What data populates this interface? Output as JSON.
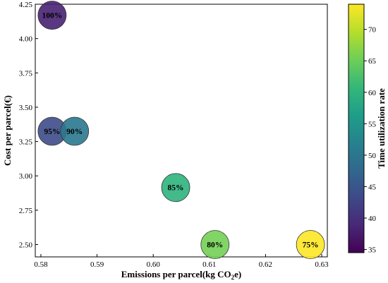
{
  "chart_data": {
    "type": "scatter",
    "title": "",
    "xlabel": "Emissions per parcel(kg CO",
    "xlabel_sub": "2",
    "xlabel_tail": "e)",
    "ylabel": "Cost per parcel(€)",
    "colorbar_label": "Time utilization rate",
    "xlim": [
      0.579,
      0.631
    ],
    "ylim": [
      2.41,
      4.25
    ],
    "color_range": [
      34.5,
      74
    ],
    "x_ticks": [
      0.58,
      0.59,
      0.6,
      0.61,
      0.62,
      0.63
    ],
    "y_ticks": [
      2.5,
      2.75,
      3.0,
      3.25,
      3.5,
      3.75,
      4.0,
      4.25
    ],
    "colorbar_ticks": [
      35,
      40,
      45,
      50,
      55,
      60,
      65,
      70
    ],
    "points": [
      {
        "x": 0.582,
        "y": 4.17,
        "label": "100%",
        "time_utilization": 34.5,
        "color": "#482173"
      },
      {
        "x": 0.582,
        "y": 3.325,
        "label": "95%",
        "time_utilization": 40,
        "color": "#3e4c8a"
      },
      {
        "x": 0.586,
        "y": 3.325,
        "label": "90%",
        "time_utilization": 47,
        "color": "#2a788e"
      },
      {
        "x": 0.604,
        "y": 2.915,
        "label": "85%",
        "time_utilization": 60,
        "color": "#2db27d"
      },
      {
        "x": 0.611,
        "y": 2.5,
        "label": "80%",
        "time_utilization": 67,
        "color": "#73d055"
      },
      {
        "x": 0.628,
        "y": 2.5,
        "label": "75%",
        "time_utilization": 74,
        "color": "#fde725"
      }
    ],
    "colorbar_colors": [
      "#440154",
      "#482878",
      "#3e4989",
      "#31688e",
      "#26828e",
      "#1f9e89",
      "#35b779",
      "#6ece58",
      "#b5de2b",
      "#fde725"
    ],
    "grid": false
  }
}
